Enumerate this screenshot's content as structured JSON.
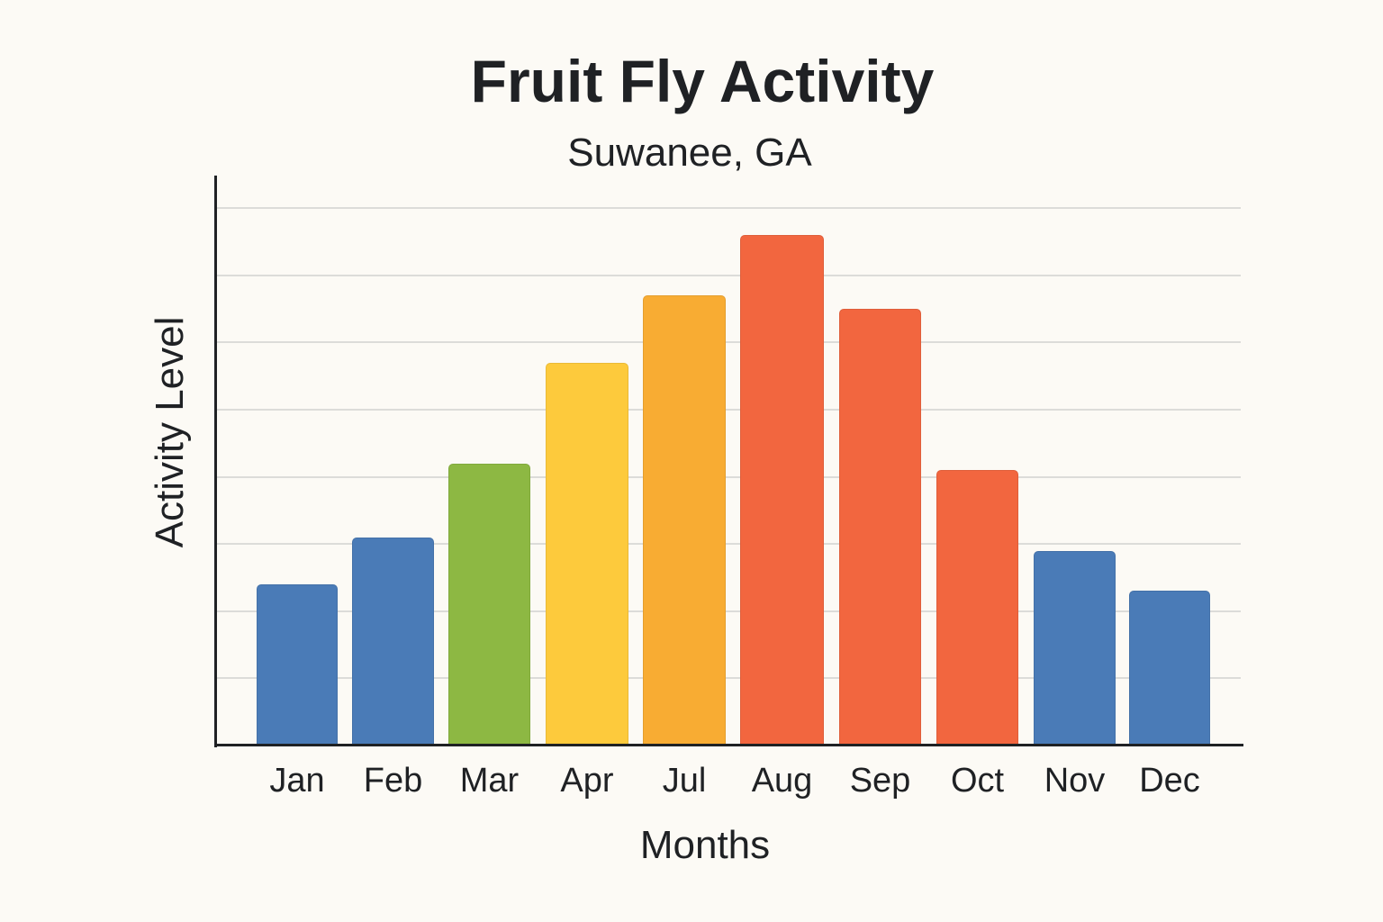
{
  "chart_data": {
    "type": "bar",
    "title": "Fruit Fly Activity",
    "subtitle": "Suwanee, GA",
    "xlabel": "Months",
    "ylabel": "Activity Level",
    "categories": [
      "Jan",
      "Feb",
      "Mar",
      "Apr",
      "Jul",
      "Aug",
      "Sep",
      "Oct",
      "Nov",
      "Dec"
    ],
    "values": [
      2.4,
      3.1,
      4.2,
      5.7,
      6.7,
      7.6,
      6.5,
      4.1,
      2.9,
      2.3
    ],
    "colors": [
      "#4a7bb7",
      "#4a7bb7",
      "#8db843",
      "#fdca3c",
      "#f8ac33",
      "#f2663f",
      "#f2663f",
      "#f2663f",
      "#4a7bb7",
      "#4a7bb7"
    ],
    "ylim": [
      0,
      8.5
    ],
    "grid": true,
    "y_tick_labels_shown": false,
    "legend": null
  }
}
